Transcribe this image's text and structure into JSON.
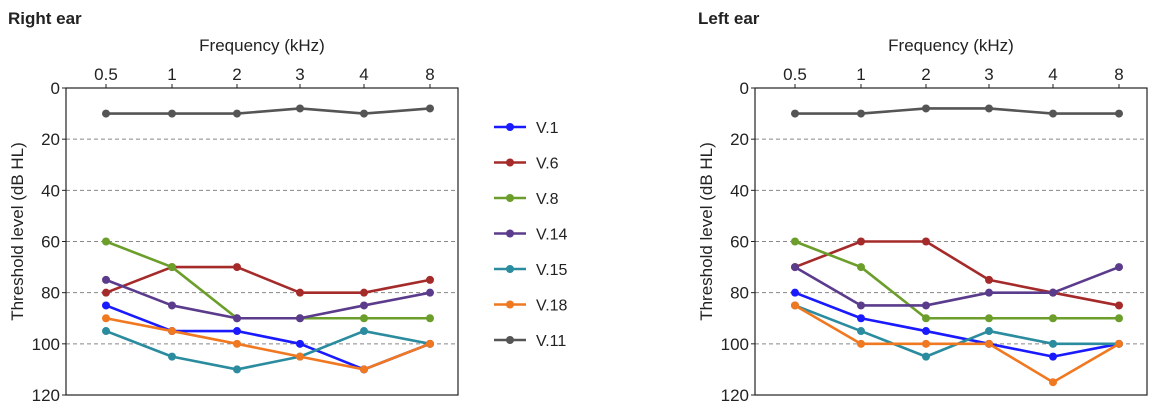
{
  "chart_data": [
    {
      "type": "line",
      "title": "Right ear",
      "xlabel": "Frequency (kHz)",
      "ylabel": "Threshold level (dB HL)",
      "x_axis_position": "top",
      "y_inverted": true,
      "ylim": [
        0,
        120
      ],
      "yticks": [
        0,
        20,
        40,
        60,
        80,
        100,
        120
      ],
      "categories": [
        "0.5",
        "1",
        "2",
        "3",
        "4",
        "8"
      ],
      "grid": "horizontal dashed",
      "series": [
        {
          "name": "V.1",
          "color": "#1a1aff",
          "values": [
            85,
            95,
            95,
            100,
            110,
            100
          ]
        },
        {
          "name": "V.6",
          "color": "#a52a2a",
          "values": [
            80,
            70,
            70,
            80,
            80,
            75
          ]
        },
        {
          "name": "V.8",
          "color": "#6b9e2a",
          "values": [
            60,
            70,
            90,
            90,
            90,
            90
          ]
        },
        {
          "name": "V.14",
          "color": "#5b3b8c",
          "values": [
            75,
            85,
            90,
            90,
            85,
            80
          ]
        },
        {
          "name": "V.15",
          "color": "#2a8c9e",
          "values": [
            95,
            105,
            110,
            105,
            95,
            100
          ]
        },
        {
          "name": "V.18",
          "color": "#f07820",
          "values": [
            90,
            95,
            100,
            105,
            110,
            100
          ]
        },
        {
          "name": "V.11",
          "color": "#555555",
          "values": [
            10,
            10,
            10,
            8,
            10,
            8
          ]
        }
      ]
    },
    {
      "type": "line",
      "title": "Left ear",
      "xlabel": "Frequency (kHz)",
      "ylabel": "Threshold level (dB HL)",
      "x_axis_position": "top",
      "y_inverted": true,
      "ylim": [
        0,
        120
      ],
      "yticks": [
        0,
        20,
        40,
        60,
        80,
        100,
        120
      ],
      "categories": [
        "0.5",
        "1",
        "2",
        "3",
        "4",
        "8"
      ],
      "grid": "horizontal dashed",
      "series": [
        {
          "name": "V.1",
          "color": "#1a1aff",
          "values": [
            80,
            90,
            95,
            100,
            105,
            100
          ]
        },
        {
          "name": "V.6",
          "color": "#a52a2a",
          "values": [
            70,
            60,
            60,
            75,
            80,
            85
          ]
        },
        {
          "name": "V.8",
          "color": "#6b9e2a",
          "values": [
            60,
            70,
            90,
            90,
            90,
            90
          ]
        },
        {
          "name": "V.14",
          "color": "#5b3b8c",
          "values": [
            70,
            85,
            85,
            80,
            80,
            70
          ]
        },
        {
          "name": "V.15",
          "color": "#2a8c9e",
          "values": [
            85,
            95,
            105,
            95,
            100,
            100
          ]
        },
        {
          "name": "V.18",
          "color": "#f07820",
          "values": [
            85,
            100,
            100,
            100,
            115,
            100
          ]
        },
        {
          "name": "V.11",
          "color": "#555555",
          "values": [
            10,
            10,
            8,
            8,
            10,
            10
          ]
        }
      ]
    }
  ],
  "legend": {
    "placement": "between panels",
    "items": [
      "V.1",
      "V.6",
      "V.8",
      "V.14",
      "V.15",
      "V.18",
      "V.11"
    ]
  }
}
